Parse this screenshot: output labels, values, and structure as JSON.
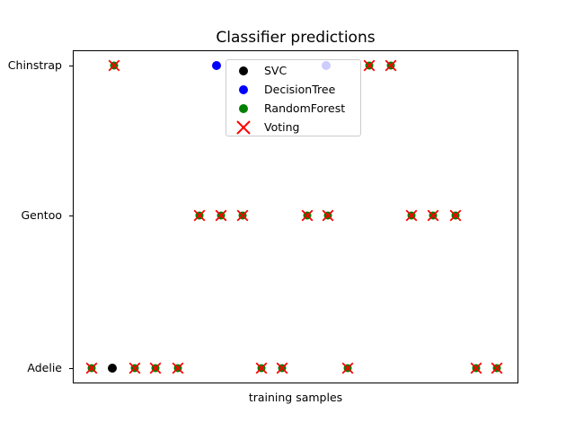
{
  "chart_data": {
    "type": "scatter",
    "title": "Classifier predictions",
    "xlabel": "training samples",
    "ylabel": "",
    "y_ticks": [
      "Chinstrap",
      "Gentoo",
      "Adelie"
    ],
    "x_ticks": [],
    "grid": false,
    "num_samples": 20,
    "colors": {
      "svc": "#000000",
      "decision_tree": "#0000ff",
      "random_forest": "#008000",
      "voting": "#ff0000"
    },
    "legend": {
      "position": "upper-center inside axes",
      "entries": [
        {
          "label": "SVC",
          "marker": "circle",
          "color": "#000000"
        },
        {
          "label": "DecisionTree",
          "marker": "circle",
          "color": "#0000ff"
        },
        {
          "label": "RandomForest",
          "marker": "circle",
          "color": "#008000"
        },
        {
          "label": "Voting",
          "marker": "x",
          "color": "#ff0000"
        }
      ]
    },
    "marker_types": {
      "rf_voting": "green circle overlaid by red X (RandomForest + Voting consensus prediction)",
      "svc": "black circle (SVC prediction differing from consensus)",
      "decision_tree": "blue circle (DecisionTree prediction differing from consensus)"
    },
    "markers": [
      {
        "sample": 1,
        "x": 127,
        "row": "Chinstrap",
        "type": "rf_voting"
      },
      {
        "sample": 6,
        "x": 241,
        "row": "Chinstrap",
        "type": "decision_tree"
      },
      {
        "sample": 11,
        "x": 363,
        "row": "Chinstrap",
        "type": "decision_tree",
        "behind_legend": true
      },
      {
        "sample": 13,
        "x": 411,
        "row": "Chinstrap",
        "type": "rf_voting"
      },
      {
        "sample": 14,
        "x": 435,
        "row": "Chinstrap",
        "type": "rf_voting"
      },
      {
        "sample": 5,
        "x": 222,
        "row": "Gentoo",
        "type": "rf_voting"
      },
      {
        "sample": 6,
        "x": 246,
        "row": "Gentoo",
        "type": "rf_voting"
      },
      {
        "sample": 7,
        "x": 270,
        "row": "Gentoo",
        "type": "rf_voting"
      },
      {
        "sample": 10,
        "x": 342,
        "row": "Gentoo",
        "type": "rf_voting"
      },
      {
        "sample": 11,
        "x": 365,
        "row": "Gentoo",
        "type": "rf_voting"
      },
      {
        "sample": 15,
        "x": 458,
        "row": "Gentoo",
        "type": "rf_voting"
      },
      {
        "sample": 16,
        "x": 482,
        "row": "Gentoo",
        "type": "rf_voting"
      },
      {
        "sample": 17,
        "x": 507,
        "row": "Gentoo",
        "type": "rf_voting"
      },
      {
        "sample": 0,
        "x": 102,
        "row": "Adelie",
        "type": "rf_voting"
      },
      {
        "sample": 1,
        "x": 125,
        "row": "Adelie",
        "type": "svc"
      },
      {
        "sample": 2,
        "x": 150,
        "row": "Adelie",
        "type": "rf_voting"
      },
      {
        "sample": 3,
        "x": 173,
        "row": "Adelie",
        "type": "rf_voting"
      },
      {
        "sample": 4,
        "x": 198,
        "row": "Adelie",
        "type": "rf_voting"
      },
      {
        "sample": 8,
        "x": 291,
        "row": "Adelie",
        "type": "rf_voting"
      },
      {
        "sample": 9,
        "x": 314,
        "row": "Adelie",
        "type": "rf_voting"
      },
      {
        "sample": 12,
        "x": 387,
        "row": "Adelie",
        "type": "rf_voting"
      },
      {
        "sample": 18,
        "x": 530,
        "row": "Adelie",
        "type": "rf_voting"
      },
      {
        "sample": 19,
        "x": 553,
        "row": "Adelie",
        "type": "rf_voting"
      }
    ]
  }
}
